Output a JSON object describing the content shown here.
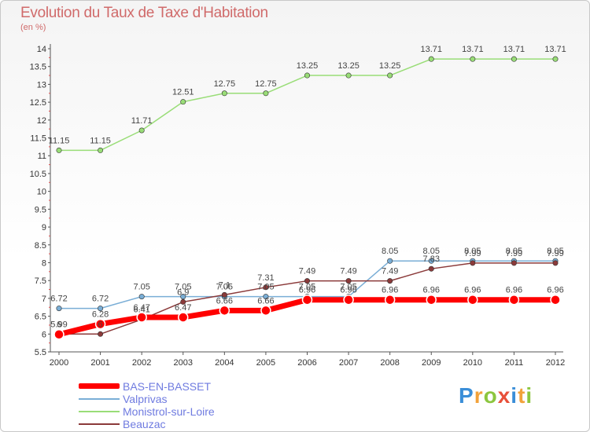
{
  "title": "Evolution du Taux de Taxe d'Habitation",
  "subtitle": "(en %)",
  "logo": "Proxiti",
  "chart_data": {
    "type": "line",
    "x": [
      "2000",
      "2001",
      "2002",
      "2003",
      "2004",
      "2005",
      "2006",
      "2007",
      "2008",
      "2009",
      "2010",
      "2011",
      "2012"
    ],
    "ylim": [
      5.5,
      14
    ],
    "yticks": [
      "5.5",
      "6",
      "6.5",
      "7",
      "7.5",
      "8",
      "8.5",
      "9",
      "9.5",
      "10",
      "10.5",
      "11",
      "11.5",
      "12",
      "12.5",
      "13",
      "13.5",
      "14"
    ],
    "grid": false,
    "legend": "bottom-left",
    "series": [
      {
        "name": "BAS-EN-BASSET",
        "color": "#ff0000",
        "values": [
          5.99,
          6.28,
          6.47,
          6.47,
          6.66,
          6.66,
          6.96,
          6.96,
          6.96,
          6.96,
          6.96,
          6.96,
          6.96
        ],
        "labels": [
          "5.99",
          "6.28",
          "6.47",
          "6.47",
          "6.66",
          "6.66",
          "6.96",
          "6.96",
          "6.96",
          "6.96",
          "6.96",
          "6.96",
          "6.96"
        ]
      },
      {
        "name": "Valprivas",
        "color": "#7aaed6",
        "values": [
          6.72,
          6.72,
          7.05,
          7.05,
          7.05,
          7.05,
          7.05,
          7.05,
          8.05,
          8.05,
          8.05,
          8.05,
          8.05
        ],
        "labels": [
          "6.72",
          "6.72",
          "7.05",
          "7.05",
          "7.05",
          "7.05",
          "7.05",
          "7.05",
          "8.05",
          "8.05",
          "8.05",
          "8.05",
          "8.05"
        ]
      },
      {
        "name": "Monistrol-sur-Loire",
        "color": "#99dd77",
        "values": [
          11.15,
          11.15,
          11.71,
          12.51,
          12.75,
          12.75,
          13.25,
          13.25,
          13.25,
          13.71,
          13.71,
          13.71,
          13.71
        ],
        "labels": [
          "11.15",
          "11.15",
          "11.71",
          "12.51",
          "12.75",
          "12.75",
          "13.25",
          "13.25",
          "13.25",
          "13.71",
          "13.71",
          "13.71",
          "13.71"
        ]
      },
      {
        "name": "Beauzac",
        "color": "#8b3a3a",
        "values": [
          6.0,
          6.0,
          6.41,
          6.9,
          7.1,
          7.31,
          7.49,
          7.49,
          7.49,
          7.83,
          7.99,
          7.99,
          7.99
        ],
        "labels": [
          "6",
          "6",
          "6.41",
          "6.9",
          "7.1",
          "7.31",
          "7.49",
          "7.49",
          "7.49",
          "7.83",
          "7.99",
          "7.99",
          "7.99"
        ]
      }
    ]
  }
}
